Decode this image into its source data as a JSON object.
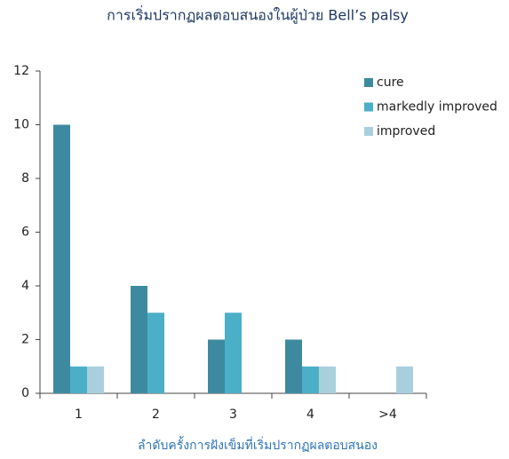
{
  "chart_data": {
    "type": "bar",
    "title": "การเริ่มปรากฏผลตอบสนองในผู้ป่วย Bell’s palsy",
    "x_label": "ลำดับครั้งการฝังเข็มที่เริ่มปรากฏผลตอบสนอง",
    "categories": [
      "1",
      "2",
      "3",
      "4",
      ">4"
    ],
    "series": [
      {
        "name": "cure",
        "color": "#3d8aa0",
        "values": [
          10,
          4,
          2,
          2,
          0
        ]
      },
      {
        "name": "markedly improved",
        "color": "#4bafc8",
        "values": [
          1,
          3,
          3,
          1,
          0
        ]
      },
      {
        "name": "improved",
        "color": "#a9cfdd",
        "values": [
          1,
          0,
          0,
          1,
          1
        ]
      }
    ],
    "ylim": [
      0,
      12
    ],
    "yticks": [
      0,
      2,
      4,
      6,
      8,
      10,
      12
    ],
    "legend": "top-right"
  }
}
